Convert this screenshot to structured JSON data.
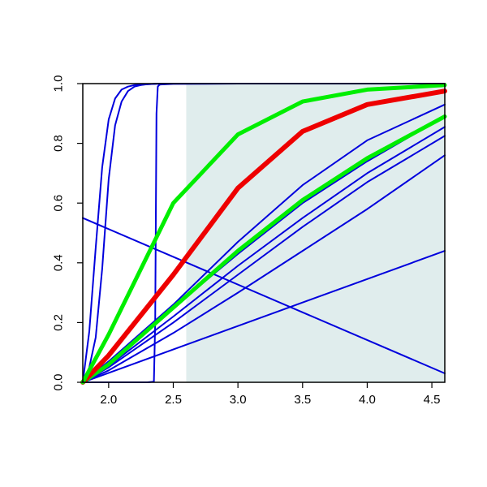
{
  "chart_data": {
    "type": "line",
    "title": "",
    "xlabel": "",
    "ylabel": "",
    "xlim": [
      1.8,
      4.6
    ],
    "ylim": [
      0,
      1
    ],
    "x_ticks": [
      2.0,
      2.5,
      3.0,
      3.5,
      4.0,
      4.5
    ],
    "x_tick_labels": [
      "2.0",
      "2.5",
      "3.0",
      "3.5",
      "4.0",
      "4.5"
    ],
    "y_ticks": [
      0.0,
      0.2,
      0.4,
      0.6,
      0.8,
      1.0
    ],
    "y_tick_labels": [
      "0.0",
      "0.2",
      "0.4",
      "0.6",
      "0.8",
      "1.0"
    ],
    "grid": false,
    "legend": "none",
    "shaded_region": {
      "x": [
        2.6,
        4.6
      ],
      "y": [
        0,
        1
      ],
      "color": "#e0eded"
    },
    "series": [
      {
        "color": "#0000dd",
        "width": 2,
        "x": [
          1.8,
          1.85,
          1.9,
          1.95,
          2.0,
          2.05,
          2.1,
          2.15,
          2.2,
          2.3,
          2.4,
          2.6,
          3.0,
          3.5,
          4.0,
          4.6
        ],
        "y": [
          0.0,
          0.17,
          0.45,
          0.72,
          0.88,
          0.95,
          0.98,
          0.99,
          0.995,
          0.998,
          1.0,
          1.0,
          1.0,
          1.0,
          1.0,
          1.0
        ]
      },
      {
        "color": "#0000dd",
        "width": 2,
        "x": [
          1.8,
          1.85,
          1.9,
          1.95,
          2.0,
          2.05,
          2.1,
          2.15,
          2.2,
          2.25,
          2.3,
          2.4,
          2.6,
          3.0,
          4.6
        ],
        "y": [
          0.0,
          0.05,
          0.15,
          0.38,
          0.68,
          0.86,
          0.94,
          0.975,
          0.99,
          0.995,
          0.998,
          1.0,
          1.0,
          1.0,
          1.0
        ]
      },
      {
        "color": "#0000dd",
        "width": 2,
        "x": [
          1.8,
          2.0,
          2.3,
          2.35,
          2.36,
          2.37,
          2.38,
          2.39,
          2.4,
          2.5,
          3.0,
          4.6
        ],
        "y": [
          0.0,
          0.0,
          0.0,
          0.002,
          0.2,
          0.9,
          0.99,
          0.995,
          0.997,
          0.999,
          1.0,
          1.0
        ]
      },
      {
        "color": "#0000dd",
        "width": 2,
        "x": [
          1.8,
          2.0,
          2.5,
          3.0,
          3.5,
          4.0,
          4.6
        ],
        "y": [
          0.0,
          0.06,
          0.25,
          0.43,
          0.6,
          0.74,
          0.89
        ]
      },
      {
        "color": "#0000dd",
        "width": 2,
        "x": [
          1.8,
          2.0,
          2.5,
          3.0,
          3.5,
          4.0,
          4.6
        ],
        "y": [
          0.0,
          0.07,
          0.26,
          0.47,
          0.66,
          0.81,
          0.93
        ]
      },
      {
        "color": "#0000dd",
        "width": 2,
        "x": [
          1.8,
          2.0,
          2.5,
          3.0,
          3.5,
          4.0,
          4.6
        ],
        "y": [
          0.0,
          0.055,
          0.22,
          0.39,
          0.55,
          0.7,
          0.855
        ]
      },
      {
        "color": "#0000dd",
        "width": 2,
        "x": [
          1.8,
          2.0,
          2.5,
          3.0,
          3.5,
          4.0,
          4.6
        ],
        "y": [
          0.0,
          0.05,
          0.2,
          0.36,
          0.52,
          0.67,
          0.825
        ]
      },
      {
        "color": "#0000dd",
        "width": 2,
        "x": [
          1.8,
          2.0,
          2.5,
          3.0,
          3.5,
          4.0,
          4.6
        ],
        "y": [
          0.0,
          0.04,
          0.165,
          0.3,
          0.44,
          0.58,
          0.76
        ]
      },
      {
        "color": "#0000dd",
        "width": 2,
        "x": [
          1.8,
          4.6
        ],
        "y": [
          0.0,
          0.44
        ]
      },
      {
        "color": "#0000dd",
        "width": 2,
        "x": [
          1.8,
          4.6
        ],
        "y": [
          0.55,
          0.03
        ]
      },
      {
        "color": "#00ee00",
        "width": 5,
        "x": [
          1.8,
          2.0,
          2.5,
          3.0,
          3.5,
          4.0,
          4.6
        ],
        "y": [
          0.0,
          0.06,
          0.25,
          0.44,
          0.61,
          0.75,
          0.89
        ]
      },
      {
        "color": "#ee0000",
        "width": 6,
        "x": [
          1.8,
          2.0,
          2.5,
          3.0,
          3.5,
          4.0,
          4.6
        ],
        "y": [
          0.0,
          0.09,
          0.36,
          0.65,
          0.84,
          0.93,
          0.975
        ]
      },
      {
        "color": "#00ee00",
        "width": 5,
        "x": [
          1.8,
          2.0,
          2.5,
          3.0,
          3.5,
          4.0,
          4.6
        ],
        "y": [
          0.0,
          0.16,
          0.6,
          0.83,
          0.94,
          0.98,
          0.995
        ]
      }
    ]
  }
}
